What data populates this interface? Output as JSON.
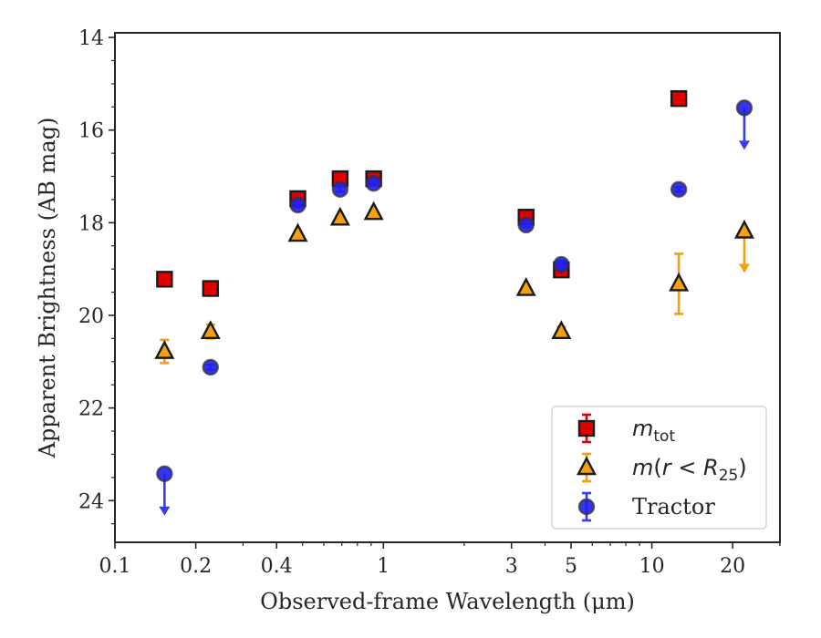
{
  "chart_data": {
    "type": "scatter",
    "xlabel": "Observed-frame Wavelength (μm)",
    "ylabel": "Apparent Brightness (AB mag)",
    "xscale": "log",
    "xlim": [
      0.1,
      30
    ],
    "ylim": [
      24.9,
      13.9
    ],
    "y_inverted": true,
    "x_tick_values": [
      0.1,
      0.2,
      0.4,
      1,
      3,
      5,
      10,
      20
    ],
    "x_tick_labels": [
      "0.1",
      "0.2",
      "0.4",
      "1",
      "3",
      "5",
      "10",
      "20"
    ],
    "y_tick_values": [
      14,
      16,
      18,
      20,
      22,
      24
    ],
    "y_tick_labels": [
      "14",
      "16",
      "18",
      "20",
      "22",
      "24"
    ],
    "legend_placement": "lower-right",
    "series": [
      {
        "key": "mtot",
        "legend_base": "m",
        "legend_sub": "tot",
        "legend_suffix": "",
        "marker": "square",
        "color": "#e00000",
        "error_color": "#e00000",
        "points": [
          {
            "x": 0.153,
            "y": 19.22,
            "err": 0.05
          },
          {
            "x": 0.227,
            "y": 19.42,
            "err": 0.05
          },
          {
            "x": 0.48,
            "y": 17.48,
            "err": 0.05
          },
          {
            "x": 0.69,
            "y": 17.05,
            "err": 0.05
          },
          {
            "x": 0.92,
            "y": 17.05,
            "err": 0.05
          },
          {
            "x": 3.4,
            "y": 17.88,
            "err": 0.05
          },
          {
            "x": 4.6,
            "y": 19.02,
            "err": 0.05
          },
          {
            "x": 12.6,
            "y": 15.32,
            "err": 0.05
          }
        ]
      },
      {
        "key": "mr25",
        "legend_base": "m(r < R",
        "legend_sub": "25",
        "legend_suffix": ")",
        "marker": "triangle",
        "color": "#f5a011",
        "error_color": "#f5a011",
        "points": [
          {
            "x": 0.153,
            "y": 20.78,
            "err": 0.25
          },
          {
            "x": 0.227,
            "y": 20.35,
            "err": 0.15
          },
          {
            "x": 0.48,
            "y": 18.25,
            "err": 0.05
          },
          {
            "x": 0.69,
            "y": 17.9,
            "err": 0.05
          },
          {
            "x": 0.92,
            "y": 17.78,
            "err": 0.05
          },
          {
            "x": 3.4,
            "y": 19.42,
            "err": 0.05
          },
          {
            "x": 4.6,
            "y": 20.35,
            "err": 0.1
          },
          {
            "x": 12.6,
            "y": 19.32,
            "err": 0.65
          },
          {
            "x": 22.1,
            "y": 18.18,
            "upper_limit": true
          }
        ]
      },
      {
        "key": "tractor",
        "legend_base": "Tractor",
        "legend_sub": "",
        "legend_suffix": "",
        "marker": "circle",
        "color": "#1f1ff0",
        "error_color": "#3a3af5",
        "points": [
          {
            "x": 0.153,
            "y": 23.42,
            "upper_limit": true
          },
          {
            "x": 0.227,
            "y": 21.12,
            "err": 0.05
          },
          {
            "x": 0.48,
            "y": 17.62,
            "err": 0.05
          },
          {
            "x": 0.69,
            "y": 17.28,
            "err": 0.05
          },
          {
            "x": 0.92,
            "y": 17.15,
            "err": 0.05
          },
          {
            "x": 3.4,
            "y": 18.05,
            "err": 0.05
          },
          {
            "x": 4.6,
            "y": 18.9,
            "err": 0.08
          },
          {
            "x": 12.6,
            "y": 17.28,
            "err": 0.05
          },
          {
            "x": 22.1,
            "y": 15.52,
            "upper_limit": true
          }
        ]
      }
    ]
  }
}
